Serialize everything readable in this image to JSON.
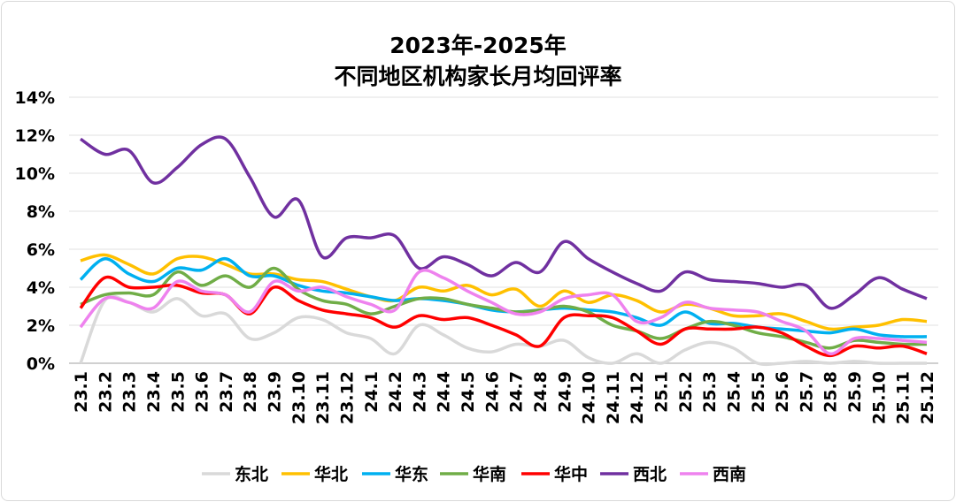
{
  "chart_data": {
    "type": "line",
    "title": [
      "2023年-2025年",
      "不同地区机构家长月均回评率"
    ],
    "xlabel": "",
    "ylabel": "",
    "ylim": [
      0,
      14
    ],
    "yticks": [
      "0%",
      "2%",
      "4%",
      "6%",
      "8%",
      "10%",
      "12%",
      "14%"
    ],
    "grid": true,
    "legend": "bottom",
    "categories": [
      "23.1",
      "23.2",
      "23.3",
      "23.4",
      "23.5",
      "23.6",
      "23.7",
      "23.8",
      "23.9",
      "23.10",
      "23.11",
      "23.12",
      "24.1",
      "24.2",
      "24.3",
      "24.4",
      "24.5",
      "24.6",
      "24.7",
      "24.8",
      "24.9",
      "24.10",
      "24.11",
      "24.12",
      "25.1",
      "25.2",
      "25.3",
      "25.4",
      "25.5",
      "25.6",
      "25.7",
      "25.8",
      "25.9",
      "25.10",
      "25.11",
      "25.12"
    ],
    "series": [
      {
        "name": "东北",
        "color": "#d9d9d9",
        "values": [
          0.0,
          3.3,
          3.2,
          2.7,
          3.4,
          2.5,
          2.6,
          1.3,
          1.6,
          2.4,
          2.3,
          1.6,
          1.3,
          0.5,
          2.0,
          1.5,
          0.8,
          0.6,
          1.0,
          0.9,
          1.2,
          0.3,
          0.0,
          0.5,
          0.0,
          0.7,
          1.1,
          0.8,
          0.0,
          0.0,
          0.1,
          0.0,
          0.1,
          0.0,
          0.0,
          0.0
        ]
      },
      {
        "name": "华北",
        "color": "#ffc000",
        "values": [
          5.4,
          5.7,
          5.2,
          4.7,
          5.5,
          5.6,
          5.2,
          4.7,
          4.7,
          4.4,
          4.3,
          3.9,
          3.5,
          3.3,
          4.0,
          3.8,
          4.1,
          3.6,
          3.9,
          3.0,
          3.8,
          3.2,
          3.6,
          3.3,
          2.7,
          3.1,
          2.9,
          2.5,
          2.5,
          2.6,
          2.2,
          1.8,
          1.9,
          2.0,
          2.3,
          2.2
        ]
      },
      {
        "name": "华东",
        "color": "#00b0f0",
        "values": [
          4.4,
          5.5,
          4.7,
          4.3,
          5.0,
          4.9,
          5.5,
          4.6,
          4.6,
          4.1,
          3.8,
          3.7,
          3.5,
          3.3,
          3.4,
          3.3,
          3.1,
          2.8,
          2.7,
          2.8,
          2.9,
          2.8,
          2.7,
          2.4,
          2.0,
          2.7,
          2.1,
          2.1,
          1.9,
          1.8,
          1.7,
          1.6,
          1.8,
          1.5,
          1.4,
          1.4
        ]
      },
      {
        "name": "华南",
        "color": "#70ad47",
        "values": [
          3.1,
          3.6,
          3.7,
          3.6,
          4.8,
          4.1,
          4.6,
          4.0,
          5.0,
          3.9,
          3.3,
          3.1,
          2.6,
          3.0,
          3.4,
          3.4,
          3.1,
          2.9,
          2.7,
          2.8,
          3.0,
          2.7,
          2.0,
          1.7,
          1.3,
          1.8,
          2.2,
          2.0,
          1.6,
          1.4,
          1.1,
          0.8,
          1.2,
          1.1,
          1.0,
          1.0
        ]
      },
      {
        "name": "华中",
        "color": "#ff0000",
        "values": [
          2.9,
          4.5,
          4.0,
          4.0,
          4.1,
          3.7,
          3.6,
          2.6,
          4.0,
          3.3,
          2.8,
          2.6,
          2.4,
          1.9,
          2.5,
          2.3,
          2.4,
          2.0,
          1.5,
          0.9,
          2.4,
          2.5,
          2.4,
          1.7,
          1.0,
          1.8,
          1.8,
          1.8,
          1.9,
          1.6,
          0.9,
          0.4,
          0.9,
          0.8,
          0.9,
          0.5
        ]
      },
      {
        "name": "西北",
        "color": "#7030a0",
        "values": [
          11.8,
          11.0,
          11.2,
          9.5,
          10.3,
          11.5,
          11.8,
          9.8,
          7.7,
          8.6,
          5.6,
          6.6,
          6.6,
          6.7,
          5.0,
          5.6,
          5.2,
          4.6,
          5.3,
          4.8,
          6.4,
          5.5,
          4.8,
          4.2,
          3.8,
          4.8,
          4.4,
          4.3,
          4.2,
          4.0,
          4.1,
          2.9,
          3.6,
          4.5,
          3.9,
          3.4
        ]
      },
      {
        "name": "西南",
        "color": "#ee82ee",
        "values": [
          1.9,
          3.4,
          3.2,
          2.9,
          4.3,
          3.8,
          3.6,
          2.7,
          4.3,
          3.8,
          4.0,
          3.5,
          3.1,
          2.8,
          4.8,
          4.5,
          3.8,
          3.2,
          2.6,
          2.7,
          3.4,
          3.6,
          3.6,
          2.2,
          2.4,
          3.2,
          2.9,
          2.8,
          2.7,
          2.2,
          1.7,
          0.5,
          1.3,
          1.3,
          1.2,
          1.1
        ]
      }
    ]
  }
}
